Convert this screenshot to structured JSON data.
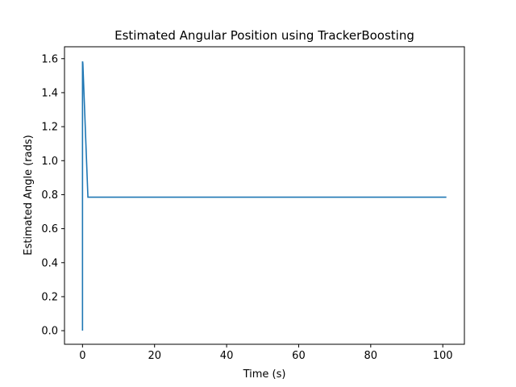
{
  "chart_data": {
    "type": "line",
    "title": "Estimated Angular Position using TrackerBoosting",
    "xlabel": "Time (s)",
    "ylabel": "Estimated Angle (rads)",
    "xlim": [
      -5,
      106
    ],
    "ylim": [
      -0.08,
      1.67
    ],
    "x_ticks": [
      0,
      20,
      40,
      60,
      80,
      100
    ],
    "y_ticks": [
      0.0,
      0.2,
      0.4,
      0.6,
      0.8,
      1.0,
      1.2,
      1.4,
      1.6
    ],
    "x_tick_labels": [
      "0",
      "20",
      "40",
      "60",
      "80",
      "100"
    ],
    "y_tick_labels": [
      "0.0",
      "0.2",
      "0.4",
      "0.6",
      "0.8",
      "1.0",
      "1.2",
      "1.4",
      "1.6"
    ],
    "grid": false,
    "series": [
      {
        "name": "",
        "color": "#1f77b4",
        "x": [
          0.0,
          0.0,
          0.05,
          0.1,
          1.5,
          101.0
        ],
        "y": [
          0.0,
          1.58,
          1.58,
          1.57,
          0.785,
          0.785
        ]
      }
    ]
  }
}
